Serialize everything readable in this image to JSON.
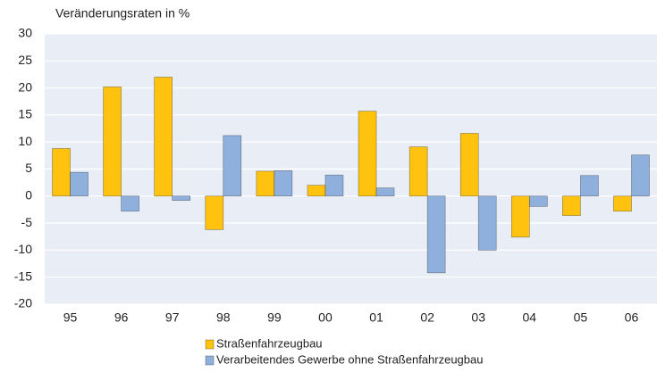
{
  "chart_data": {
    "type": "bar",
    "title": "Veränderungsraten in %",
    "categories": [
      "95",
      "96",
      "97",
      "98",
      "99",
      "00",
      "01",
      "02",
      "03",
      "04",
      "05",
      "06"
    ],
    "series": [
      {
        "name": "Straßenfahrzeugbau",
        "color": "#ffc20e",
        "values": [
          8.8,
          20.2,
          22,
          -6.2,
          4.6,
          2,
          15.7,
          9.1,
          11.6,
          -7.6,
          -3.6,
          -2.8
        ]
      },
      {
        "name": "Verarbeitendes Gewerbe ohne Straßenfahrzeugbau",
        "color": "#8fb0dd",
        "values": [
          4.4,
          -2.8,
          -0.8,
          11.2,
          4.7,
          3.9,
          1.5,
          -14.2,
          -10,
          -1.9,
          3.8,
          7.6
        ]
      }
    ],
    "ylim": [
      -20,
      30
    ],
    "yticks": [
      -20,
      -15,
      -10,
      -5,
      0,
      5,
      10,
      15,
      20,
      25,
      30
    ],
    "grid": true
  }
}
